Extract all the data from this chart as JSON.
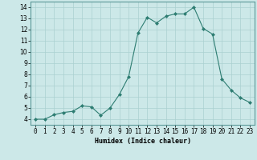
{
  "x": [
    0,
    1,
    2,
    3,
    4,
    5,
    6,
    7,
    8,
    9,
    10,
    11,
    12,
    13,
    14,
    15,
    16,
    17,
    18,
    19,
    20,
    21,
    22,
    23
  ],
  "y": [
    4.0,
    4.0,
    4.4,
    4.6,
    4.7,
    5.2,
    5.1,
    4.35,
    5.0,
    6.2,
    7.8,
    11.7,
    13.1,
    12.6,
    13.2,
    13.4,
    13.4,
    14.0,
    12.1,
    11.6,
    7.6,
    6.6,
    5.9,
    5.5
  ],
  "title": "",
  "xlabel": "Humidex (Indice chaleur)",
  "ylabel": "",
  "xlim": [
    -0.5,
    23.5
  ],
  "ylim": [
    3.5,
    14.5
  ],
  "yticks": [
    4,
    5,
    6,
    7,
    8,
    9,
    10,
    11,
    12,
    13,
    14
  ],
  "xticks": [
    0,
    1,
    2,
    3,
    4,
    5,
    6,
    7,
    8,
    9,
    10,
    11,
    12,
    13,
    14,
    15,
    16,
    17,
    18,
    19,
    20,
    21,
    22,
    23
  ],
  "line_color": "#2e7d72",
  "marker_color": "#2e7d72",
  "bg_color": "#cce8e8",
  "grid_color": "#aad0d0",
  "axes_color": "#5a9898",
  "label_color": "#000000",
  "xlabel_fontsize": 6.0,
  "tick_fontsize": 5.5
}
